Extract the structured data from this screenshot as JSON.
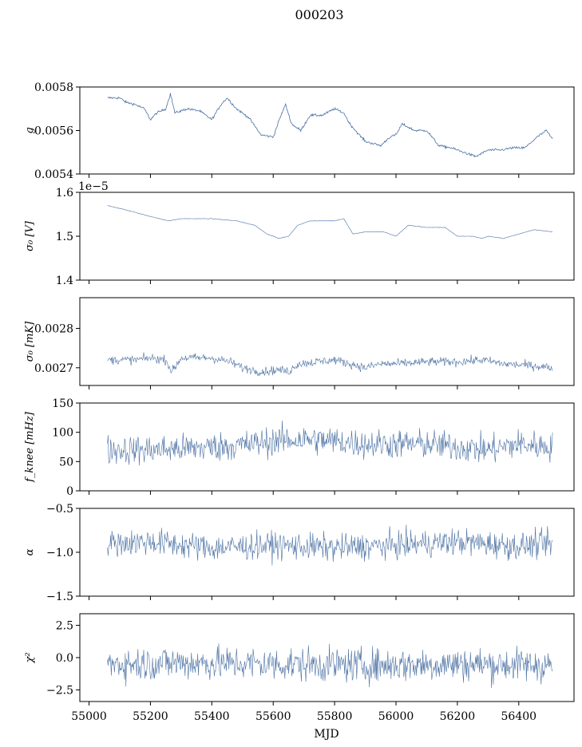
{
  "figure": {
    "title": "000203",
    "xlabel": "MJD",
    "x_ticks": [
      "55000",
      "55200",
      "55400",
      "55600",
      "55800",
      "56000",
      "56200",
      "56400"
    ]
  },
  "colors": {
    "series": "#4c72a4",
    "axes": "#000000"
  },
  "chart_data": [
    {
      "type": "line",
      "ylabel": "g",
      "ylim": [
        0.0054,
        0.0058
      ],
      "y_ticks": [
        "0.0054",
        "0.0056",
        "0.0058"
      ],
      "offset_text": "",
      "x_range": [
        55060,
        56510
      ],
      "noise": 4e-06,
      "points": [
        [
          55060,
          0.00575
        ],
        [
          55080,
          0.00575
        ],
        [
          55100,
          0.00575
        ],
        [
          55120,
          0.00573
        ],
        [
          55150,
          0.00572
        ],
        [
          55180,
          0.0057
        ],
        [
          55200,
          0.00565
        ],
        [
          55220,
          0.00568
        ],
        [
          55250,
          0.0057
        ],
        [
          55265,
          0.00577
        ],
        [
          55280,
          0.00568
        ],
        [
          55320,
          0.0057
        ],
        [
          55360,
          0.00569
        ],
        [
          55400,
          0.00565
        ],
        [
          55430,
          0.00572
        ],
        [
          55450,
          0.00575
        ],
        [
          55480,
          0.0057
        ],
        [
          55520,
          0.00566
        ],
        [
          55560,
          0.00558
        ],
        [
          55600,
          0.00557
        ],
        [
          55620,
          0.00565
        ],
        [
          55640,
          0.00572
        ],
        [
          55660,
          0.00563
        ],
        [
          55690,
          0.0056
        ],
        [
          55720,
          0.00567
        ],
        [
          55760,
          0.00567
        ],
        [
          55800,
          0.0057
        ],
        [
          55830,
          0.00568
        ],
        [
          55850,
          0.00563
        ],
        [
          55880,
          0.00558
        ],
        [
          55900,
          0.00555
        ],
        [
          55950,
          0.00553
        ],
        [
          55980,
          0.00557
        ],
        [
          56000,
          0.00558
        ],
        [
          56020,
          0.00563
        ],
        [
          56060,
          0.0056
        ],
        [
          56100,
          0.0056
        ],
        [
          56140,
          0.00553
        ],
        [
          56180,
          0.00552
        ],
        [
          56220,
          0.0055
        ],
        [
          56260,
          0.00548
        ],
        [
          56300,
          0.00551
        ],
        [
          56340,
          0.00551
        ],
        [
          56380,
          0.00552
        ],
        [
          56420,
          0.00552
        ],
        [
          56460,
          0.00557
        ],
        [
          56490,
          0.0056
        ],
        [
          56510,
          0.00556
        ]
      ]
    },
    {
      "type": "line",
      "ylabel": "σ₀ [V]",
      "ylim": [
        1.4e-05,
        1.6e-05
      ],
      "y_ticks": [
        "1.4",
        "1.5",
        "1.6"
      ],
      "offset_text": "1e−5",
      "x_range": [
        55060,
        56510
      ],
      "noise": 3.5e-09,
      "points": [
        [
          55060,
          1.57e-05
        ],
        [
          55120,
          1.56e-05
        ],
        [
          55200,
          1.545e-05
        ],
        [
          55260,
          1.535e-05
        ],
        [
          55300,
          1.54e-05
        ],
        [
          55400,
          1.54e-05
        ],
        [
          55480,
          1.535e-05
        ],
        [
          55540,
          1.525e-05
        ],
        [
          55580,
          1.505e-05
        ],
        [
          55620,
          1.495e-05
        ],
        [
          55650,
          1.5e-05
        ],
        [
          55680,
          1.525e-05
        ],
        [
          55720,
          1.535e-05
        ],
        [
          55800,
          1.535e-05
        ],
        [
          55830,
          1.54e-05
        ],
        [
          55860,
          1.505e-05
        ],
        [
          55900,
          1.51e-05
        ],
        [
          55960,
          1.51e-05
        ],
        [
          56000,
          1.5e-05
        ],
        [
          56040,
          1.525e-05
        ],
        [
          56100,
          1.52e-05
        ],
        [
          56160,
          1.52e-05
        ],
        [
          56200,
          1.5e-05
        ],
        [
          56250,
          1.5e-05
        ],
        [
          56280,
          1.495e-05
        ],
        [
          56300,
          1.5e-05
        ],
        [
          56350,
          1.495e-05
        ],
        [
          56400,
          1.505e-05
        ],
        [
          56450,
          1.515e-05
        ],
        [
          56510,
          1.51e-05
        ]
      ]
    },
    {
      "type": "line",
      "ylabel": "σ₀ [mK]",
      "ylim": [
        0.002655,
        0.002878
      ],
      "y_ticks": [
        "0.0027",
        "0.0028"
      ],
      "offset_text": "",
      "x_range": [
        55060,
        56510
      ],
      "noise": 8e-06,
      "points": [
        [
          55060,
          0.00272
        ],
        [
          55150,
          0.00272
        ],
        [
          55200,
          0.002725
        ],
        [
          55250,
          0.00272
        ],
        [
          55270,
          0.00269
        ],
        [
          55300,
          0.002725
        ],
        [
          55400,
          0.002725
        ],
        [
          55460,
          0.002715
        ],
        [
          55500,
          0.0027
        ],
        [
          55560,
          0.00269
        ],
        [
          55620,
          0.002695
        ],
        [
          55650,
          0.00269
        ],
        [
          55680,
          0.00271
        ],
        [
          55800,
          0.00272
        ],
        [
          55850,
          0.00271
        ],
        [
          55900,
          0.0027
        ],
        [
          55950,
          0.00271
        ],
        [
          56000,
          0.00271
        ],
        [
          56100,
          0.002715
        ],
        [
          56200,
          0.002715
        ],
        [
          56280,
          0.00272
        ],
        [
          56350,
          0.00271
        ],
        [
          56450,
          0.002705
        ],
        [
          56510,
          0.0027
        ]
      ]
    },
    {
      "type": "line",
      "ylabel": "f_knee [mHz]",
      "ylim": [
        0,
        150
      ],
      "y_ticks": [
        "0",
        "50",
        "100",
        "150"
      ],
      "offset_text": "",
      "x_range": [
        55060,
        56510
      ],
      "noise": 18,
      "points": [
        [
          55060,
          70
        ],
        [
          55200,
          70
        ],
        [
          55300,
          72
        ],
        [
          55400,
          75
        ],
        [
          55500,
          78
        ],
        [
          55600,
          85
        ],
        [
          55700,
          88
        ],
        [
          55800,
          85
        ],
        [
          55900,
          80
        ],
        [
          56000,
          80
        ],
        [
          56100,
          80
        ],
        [
          56200,
          75
        ],
        [
          56300,
          70
        ],
        [
          56400,
          80
        ],
        [
          56510,
          75
        ]
      ]
    },
    {
      "type": "line",
      "ylabel": "α",
      "ylim": [
        -1.5,
        -0.5
      ],
      "y_ticks": [
        "−1.5",
        "−1.0",
        "−0.5"
      ],
      "offset_text": "",
      "x_range": [
        55060,
        56510
      ],
      "noise": 0.11,
      "points": [
        [
          55060,
          -0.9
        ],
        [
          55200,
          -0.88
        ],
        [
          55400,
          -0.95
        ],
        [
          55600,
          -0.92
        ],
        [
          55800,
          -0.95
        ],
        [
          56000,
          -0.92
        ],
        [
          56200,
          -0.88
        ],
        [
          56400,
          -0.93
        ],
        [
          56510,
          -0.9
        ]
      ]
    },
    {
      "type": "line",
      "ylabel": "χ²",
      "ylim": [
        -3.4,
        3.4
      ],
      "y_ticks": [
        "−2.5",
        "0.0",
        "2.5"
      ],
      "offset_text": "",
      "x_range": [
        55060,
        56510
      ],
      "noise": 0.95,
      "points": [
        [
          55060,
          -0.5
        ],
        [
          55300,
          -0.4
        ],
        [
          55600,
          -0.5
        ],
        [
          55900,
          -0.6
        ],
        [
          56200,
          -0.5
        ],
        [
          56510,
          -0.6
        ]
      ]
    }
  ]
}
